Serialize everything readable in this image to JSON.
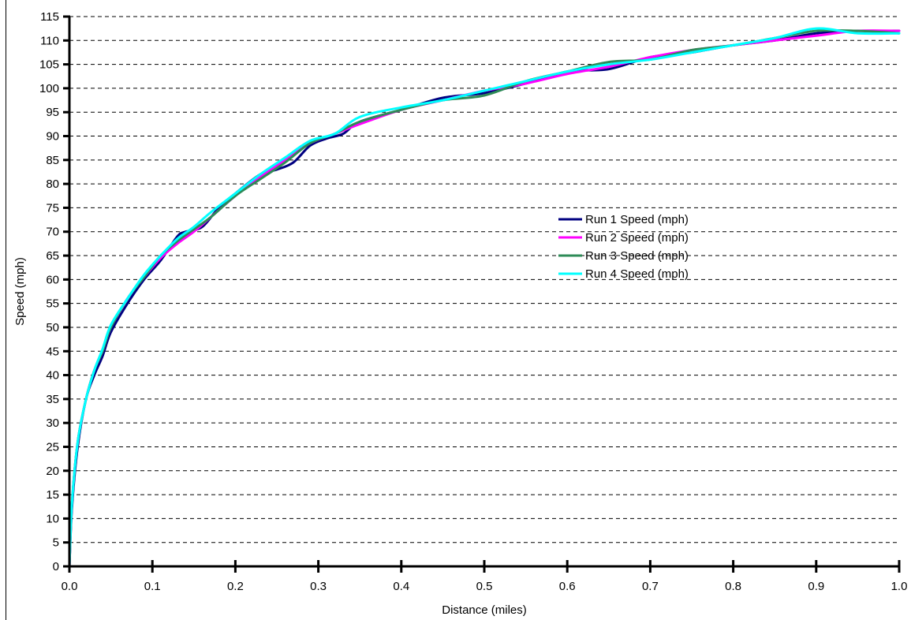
{
  "chart_data": {
    "type": "line",
    "xlabel": "Distance (miles)",
    "ylabel": "Speed (mph)",
    "xlim": [
      0,
      1.0
    ],
    "ylim": [
      0,
      115
    ],
    "x_ticks": [
      "0.0",
      "0.1",
      "0.2",
      "0.3",
      "0.4",
      "0.5",
      "0.6",
      "0.7",
      "0.8",
      "0.9",
      "1.0"
    ],
    "y_ticks": [
      "0",
      "5",
      "10",
      "15",
      "20",
      "25",
      "30",
      "35",
      "40",
      "45",
      "50",
      "55",
      "60",
      "65",
      "70",
      "75",
      "80",
      "85",
      "90",
      "95",
      "100",
      "105",
      "110",
      "115"
    ],
    "grid": "horizontal dashed",
    "legend_position": "center-right",
    "series": [
      {
        "name": "Run 1 Speed (mph)",
        "color": "#000080",
        "x": [
          0,
          0.003,
          0.01,
          0.02,
          0.03,
          0.04,
          0.05,
          0.07,
          0.09,
          0.11,
          0.13,
          0.14,
          0.16,
          0.18,
          0.2,
          0.23,
          0.25,
          0.27,
          0.29,
          0.31,
          0.33,
          0.35,
          0.4,
          0.45,
          0.5,
          0.55,
          0.6,
          0.65,
          0.7,
          0.75,
          0.8,
          0.85,
          0.9,
          0.95,
          1.0
        ],
        "y": [
          0,
          12,
          25,
          35,
          40,
          44,
          49,
          55,
          60,
          64,
          69,
          70,
          71,
          75,
          78,
          82,
          83,
          84.5,
          88,
          89.5,
          90.5,
          93,
          95.5,
          98,
          99,
          101,
          103.5,
          104,
          106.5,
          107.5,
          109,
          110,
          111.5,
          112,
          112
        ]
      },
      {
        "name": "Run 2 Speed (mph)",
        "color": "#FF00FF",
        "x": [
          0,
          0.003,
          0.01,
          0.02,
          0.03,
          0.04,
          0.05,
          0.07,
          0.09,
          0.11,
          0.13,
          0.15,
          0.17,
          0.2,
          0.23,
          0.26,
          0.29,
          0.32,
          0.35,
          0.4,
          0.45,
          0.5,
          0.55,
          0.6,
          0.65,
          0.7,
          0.75,
          0.8,
          0.85,
          0.9,
          0.95,
          1.0
        ],
        "y": [
          0,
          13,
          26,
          35,
          41,
          45,
          50,
          56,
          60.5,
          64.5,
          67.5,
          70,
          73,
          77.5,
          81.5,
          85,
          88.5,
          90.5,
          92.5,
          95.5,
          97.5,
          99.5,
          101,
          103,
          104.5,
          106.5,
          108,
          109,
          110,
          111,
          112,
          112
        ]
      },
      {
        "name": "Run 3 Speed (mph)",
        "color": "#2E8B57",
        "x": [
          0,
          0.003,
          0.01,
          0.02,
          0.03,
          0.04,
          0.05,
          0.07,
          0.09,
          0.11,
          0.13,
          0.15,
          0.17,
          0.2,
          0.23,
          0.26,
          0.29,
          0.32,
          0.35,
          0.4,
          0.45,
          0.5,
          0.55,
          0.6,
          0.65,
          0.7,
          0.75,
          0.8,
          0.85,
          0.9,
          0.95,
          1.0
        ],
        "y": [
          0,
          13,
          26,
          35,
          41,
          45,
          50,
          56,
          60.5,
          65,
          68,
          70.5,
          73,
          77.5,
          81,
          84.5,
          88.5,
          90.5,
          93,
          95.5,
          97.5,
          98.5,
          101.5,
          103.5,
          105.5,
          106,
          108,
          109,
          110.5,
          112,
          112,
          111.5
        ]
      },
      {
        "name": "Run 4 Speed (mph)",
        "color": "#00FFFF",
        "x": [
          0,
          0.003,
          0.01,
          0.02,
          0.03,
          0.04,
          0.05,
          0.07,
          0.09,
          0.11,
          0.13,
          0.15,
          0.17,
          0.2,
          0.23,
          0.26,
          0.29,
          0.32,
          0.35,
          0.4,
          0.45,
          0.5,
          0.55,
          0.6,
          0.65,
          0.7,
          0.75,
          0.8,
          0.85,
          0.9,
          0.95,
          1.0
        ],
        "y": [
          0,
          13,
          26,
          35,
          41,
          45.5,
          50.5,
          56,
          61,
          65,
          68.5,
          71,
          74,
          78,
          82,
          85.5,
          89,
          90.5,
          94,
          96,
          97.5,
          99.5,
          101.5,
          103.5,
          105,
          106,
          107.5,
          109,
          110.5,
          112.5,
          111.5,
          111.5
        ]
      }
    ]
  }
}
